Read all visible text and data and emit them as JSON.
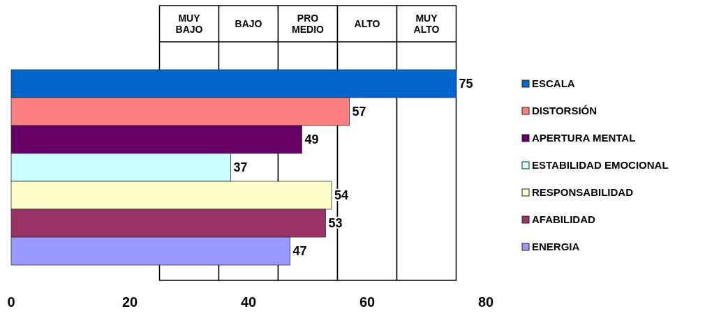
{
  "chart_data": {
    "type": "bar",
    "orientation": "horizontal",
    "categories": [
      null,
      null,
      null,
      null,
      null,
      null,
      null
    ],
    "series": [
      {
        "name": "ESCALA",
        "color": "#0066cc",
        "values": [
          75,
          null,
          null,
          null,
          null,
          null,
          null
        ]
      },
      {
        "name": "DISTORSIÓN",
        "color": "#ff8080",
        "values": [
          null,
          57,
          null,
          null,
          null,
          null,
          null
        ]
      },
      {
        "name": "APERTURA MENTAL",
        "color": "#660066",
        "values": [
          null,
          null,
          49,
          null,
          null,
          null,
          null
        ]
      },
      {
        "name": "ESTABILIDAD EMOCIONAL",
        "color": "#ccffff",
        "values": [
          null,
          null,
          null,
          37,
          null,
          null,
          null
        ]
      },
      {
        "name": "RESPONSABILIDAD",
        "color": "#ffffcc",
        "values": [
          null,
          null,
          null,
          null,
          54,
          null,
          null
        ]
      },
      {
        "name": "AFABILIDAD",
        "color": "#993366",
        "values": [
          null,
          null,
          null,
          null,
          null,
          53,
          null
        ]
      },
      {
        "name": "ENERGIA",
        "color": "#9999ff",
        "values": [
          null,
          null,
          null,
          null,
          null,
          null,
          47
        ]
      }
    ],
    "stacked": true,
    "xlim": [
      0,
      80
    ],
    "xticks": [
      0,
      20,
      40,
      60,
      80
    ],
    "data_labels": true,
    "legend": "right",
    "grid": false,
    "bands": [
      {
        "axis": "x",
        "from": 25,
        "to": 35,
        "label": "MUY\nBAJO",
        "color": "#ffffff"
      },
      {
        "axis": "x",
        "from": 35,
        "to": 45,
        "label": "BAJO",
        "color": "#ffffff"
      },
      {
        "axis": "x",
        "from": 45,
        "to": 55,
        "label": "PRO\nMEDIO",
        "color": "#ffffff"
      },
      {
        "axis": "x",
        "from": 55,
        "to": 65,
        "label": "ALTO",
        "color": "#ffffff"
      },
      {
        "axis": "x",
        "from": 65,
        "to": 75,
        "label": "MUY\nALTO",
        "color": "#ffffff"
      }
    ]
  }
}
